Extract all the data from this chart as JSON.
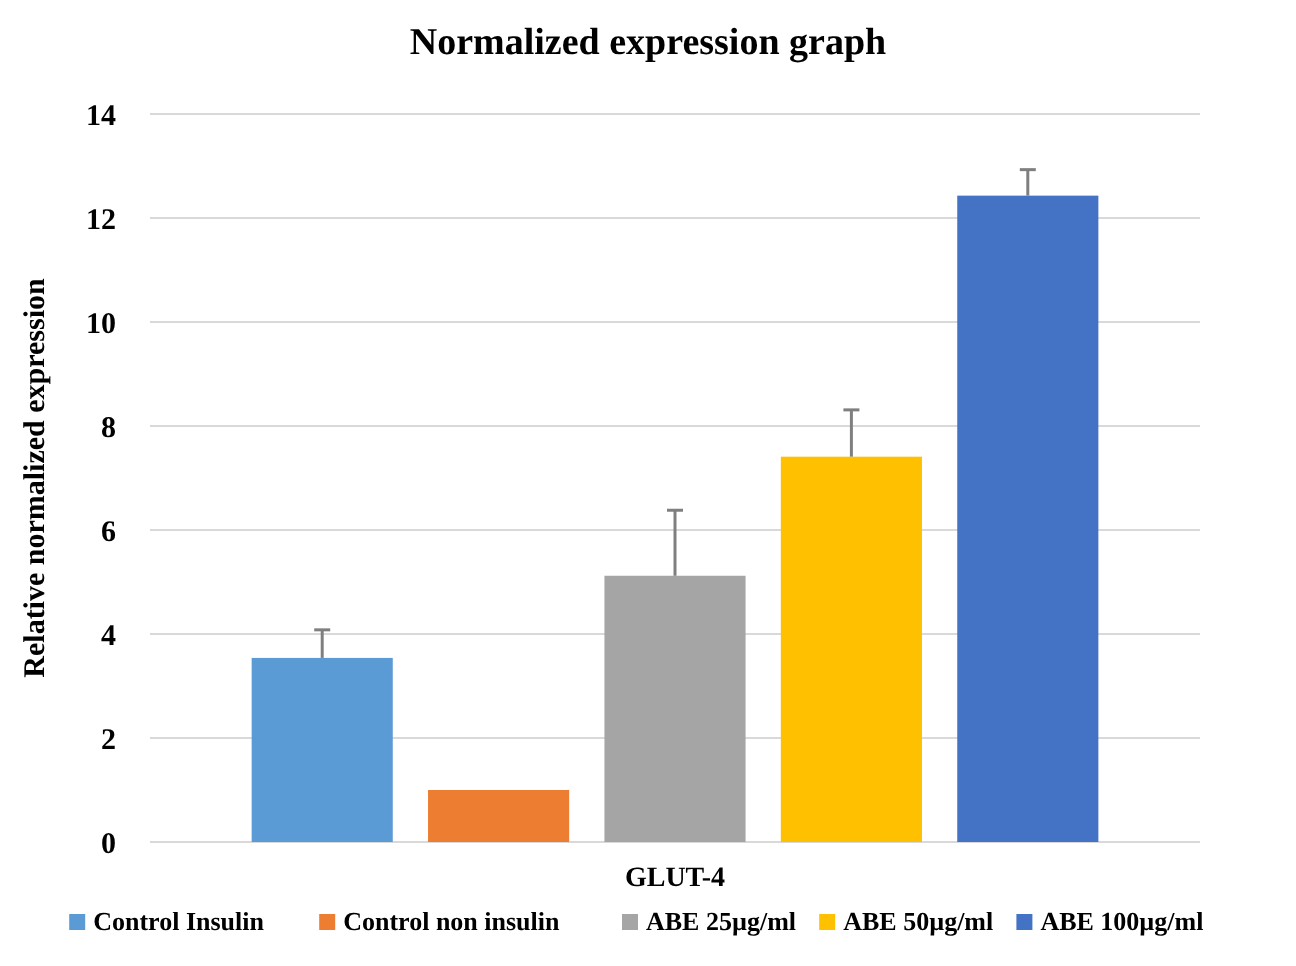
{
  "chart_data": {
    "type": "bar",
    "title": "Normalized expression graph",
    "ylabel": "Relative normalized expression",
    "categories": [
      "GLUT-4"
    ],
    "series": [
      {
        "name": "Control Insulin",
        "color": "#5b9bd5",
        "values": [
          3.54
        ],
        "errors": [
          [
            3.54,
            4.08
          ]
        ]
      },
      {
        "name": "Control non insulin",
        "color": "#ed7d31",
        "values": [
          1.0
        ],
        "errors": [
          null
        ]
      },
      {
        "name": "ABE 25µg/ml",
        "color": "#a5a5a5",
        "values": [
          5.12
        ],
        "errors": [
          [
            5.12,
            6.38
          ]
        ]
      },
      {
        "name": "ABE 50µg/ml",
        "color": "#ffc000",
        "values": [
          7.41
        ],
        "errors": [
          [
            7.41,
            8.31
          ]
        ]
      },
      {
        "name": "ABE 100µg/ml",
        "color": "#4472c4",
        "values": [
          12.43
        ],
        "errors": [
          [
            12.43,
            12.93
          ]
        ]
      }
    ],
    "ylim": [
      0,
      14
    ],
    "yticks": [
      0,
      2,
      4,
      6,
      8,
      10,
      12,
      14
    ],
    "grid": "y",
    "legend": "bottom"
  }
}
